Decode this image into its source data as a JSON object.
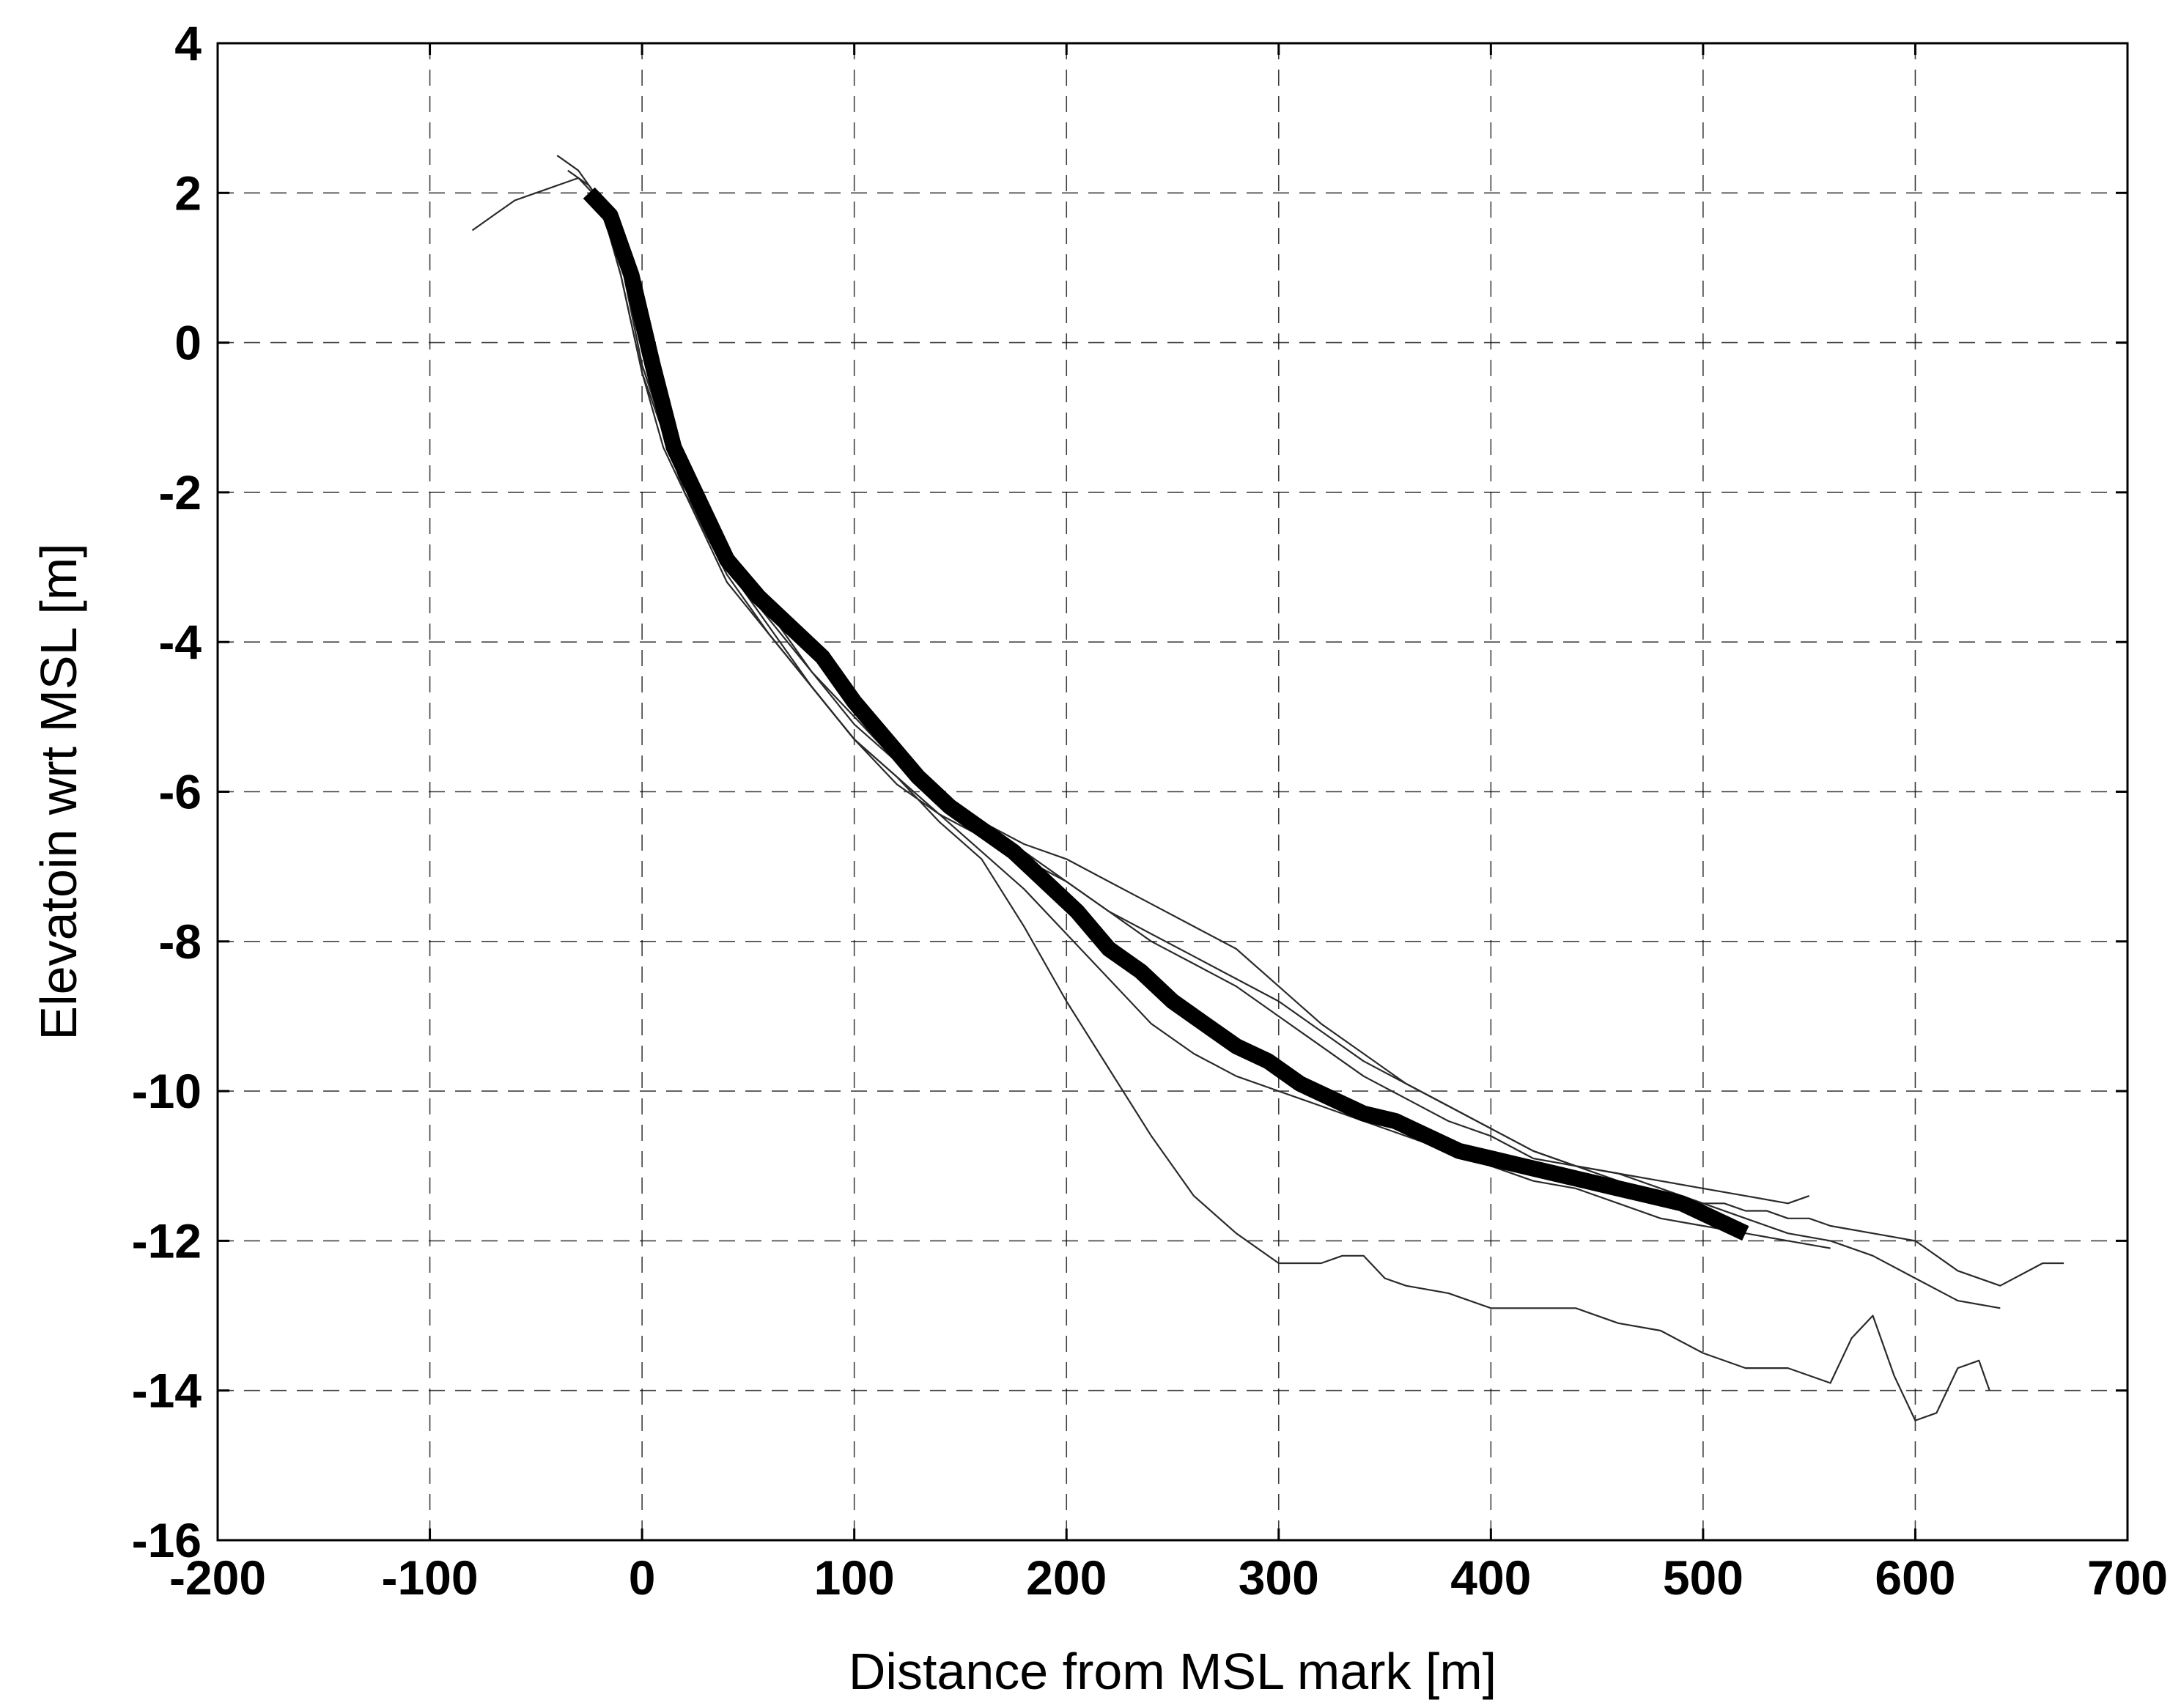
{
  "chart_data": {
    "type": "line",
    "title": "",
    "xlabel": "Distance from MSL mark [m]",
    "ylabel": "Elevatoin wrt MSL [m]",
    "xlim": [
      -200,
      700
    ],
    "ylim": [
      -16,
      4
    ],
    "xticks": [
      -200,
      -100,
      0,
      100,
      200,
      300,
      400,
      500,
      600,
      700
    ],
    "yticks": [
      -16,
      -14,
      -12,
      -10,
      -8,
      -6,
      -4,
      -2,
      0,
      2,
      4
    ],
    "grid": true,
    "colors": {
      "thin": "#2a2a2a",
      "thick": "#000000",
      "grid": "#000000"
    },
    "series": [
      {
        "style": "thin",
        "x": [
          -80,
          -70,
          -60,
          -50,
          -40,
          -30,
          -20,
          -10,
          0,
          10,
          20,
          30,
          40,
          60,
          80,
          100,
          120,
          140,
          160,
          180,
          200,
          220,
          240,
          260,
          280,
          300,
          320,
          340,
          360,
          380,
          400,
          420,
          440,
          460,
          480,
          500,
          510,
          520,
          530,
          540,
          550,
          560,
          580,
          600,
          620,
          640,
          660,
          670
        ],
        "y": [
          1.5,
          1.7,
          1.9,
          2.0,
          2.1,
          2.2,
          1.9,
          0.9,
          -0.4,
          -1.4,
          -2.0,
          -2.6,
          -3.2,
          -3.9,
          -4.6,
          -5.3,
          -5.9,
          -6.3,
          -6.6,
          -6.9,
          -7.2,
          -7.6,
          -7.9,
          -8.2,
          -8.5,
          -8.8,
          -9.2,
          -9.6,
          -9.9,
          -10.2,
          -10.5,
          -10.8,
          -11.0,
          -11.1,
          -11.3,
          -11.5,
          -11.5,
          -11.6,
          -11.6,
          -11.7,
          -11.7,
          -11.8,
          -11.9,
          -12.0,
          -12.4,
          -12.6,
          -12.3,
          -12.3
        ]
      },
      {
        "style": "thin",
        "x": [
          -40,
          -30,
          -20,
          -10,
          0,
          20,
          40,
          60,
          80,
          100,
          120,
          140,
          160,
          180,
          200,
          220,
          240,
          260,
          280,
          300,
          320,
          340,
          360,
          380,
          400,
          420,
          440,
          460,
          480,
          500,
          520,
          540,
          560,
          580,
          600,
          620,
          640
        ],
        "y": [
          2.5,
          2.3,
          1.9,
          0.9,
          -0.4,
          -2.0,
          -3.0,
          -3.7,
          -4.4,
          -5.1,
          -5.6,
          -6.1,
          -6.4,
          -6.7,
          -6.9,
          -7.2,
          -7.5,
          -7.8,
          -8.1,
          -8.6,
          -9.1,
          -9.5,
          -9.9,
          -10.2,
          -10.5,
          -10.8,
          -11.0,
          -11.2,
          -11.4,
          -11.5,
          -11.7,
          -11.9,
          -12.0,
          -12.2,
          -12.5,
          -12.8,
          -12.9
        ]
      },
      {
        "style": "thin",
        "x": [
          -35,
          -25,
          -15,
          -5,
          5,
          20,
          40,
          60,
          80,
          100,
          120,
          140,
          160,
          180,
          200,
          220,
          240,
          260,
          280,
          300,
          320,
          340,
          360,
          380,
          400,
          420,
          440,
          460,
          480,
          500,
          520,
          540,
          550
        ],
        "y": [
          2.3,
          2.1,
          1.7,
          0.6,
          -0.7,
          -2.0,
          -3.0,
          -3.6,
          -4.4,
          -5.0,
          -5.6,
          -6.0,
          -6.4,
          -6.8,
          -7.2,
          -7.6,
          -8.0,
          -8.3,
          -8.6,
          -9.0,
          -9.4,
          -9.8,
          -10.1,
          -10.4,
          -10.6,
          -10.9,
          -11.0,
          -11.1,
          -11.2,
          -11.3,
          -11.4,
          -11.5,
          -11.4
        ]
      },
      {
        "style": "thin",
        "x": [
          -20,
          -10,
          0,
          20,
          40,
          60,
          80,
          100,
          120,
          140,
          160,
          180,
          200,
          220,
          240,
          260,
          280,
          300,
          320,
          340,
          360,
          380,
          400,
          420,
          440,
          460,
          480,
          500,
          520,
          540,
          560
        ],
        "y": [
          2.0,
          1.1,
          -0.3,
          -1.9,
          -3.0,
          -3.8,
          -4.6,
          -5.3,
          -5.8,
          -6.3,
          -6.8,
          -7.3,
          -7.9,
          -8.5,
          -9.1,
          -9.5,
          -9.8,
          -10.0,
          -10.2,
          -10.4,
          -10.6,
          -10.8,
          -11.0,
          -11.2,
          -11.3,
          -11.5,
          -11.7,
          -11.8,
          -11.9,
          -12.0,
          -12.1
        ]
      },
      {
        "style": "thin",
        "x": [
          -20,
          -10,
          0,
          20,
          40,
          60,
          80,
          100,
          120,
          140,
          160,
          180,
          200,
          220,
          240,
          260,
          280,
          300,
          320,
          330,
          340,
          350,
          360,
          380,
          400,
          420,
          440,
          460,
          480,
          500,
          520,
          540,
          560,
          570,
          580,
          590,
          600,
          610,
          620,
          630,
          635
        ],
        "y": [
          2.0,
          1.1,
          -0.3,
          -2.0,
          -3.1,
          -3.9,
          -4.6,
          -5.3,
          -5.8,
          -6.4,
          -6.9,
          -7.8,
          -8.8,
          -9.7,
          -10.6,
          -11.4,
          -11.9,
          -12.3,
          -12.3,
          -12.2,
          -12.2,
          -12.5,
          -12.6,
          -12.7,
          -12.9,
          -12.9,
          -12.9,
          -13.1,
          -13.2,
          -13.5,
          -13.7,
          -13.7,
          -13.9,
          -13.3,
          -13.0,
          -13.8,
          -14.4,
          -14.3,
          -13.7,
          -13.6,
          -14.0
        ]
      },
      {
        "style": "thick",
        "x": [
          -25,
          -15,
          -5,
          5,
          15,
          25,
          40,
          55,
          70,
          85,
          100,
          115,
          130,
          145,
          160,
          175,
          190,
          205,
          220,
          235,
          250,
          265,
          280,
          295,
          310,
          325,
          340,
          355,
          370,
          385,
          400,
          415,
          430,
          445,
          460,
          475,
          490,
          505,
          520
        ],
        "y": [
          2.0,
          1.7,
          0.9,
          -0.3,
          -1.4,
          -2.0,
          -2.9,
          -3.4,
          -3.8,
          -4.2,
          -4.8,
          -5.3,
          -5.8,
          -6.2,
          -6.5,
          -6.8,
          -7.2,
          -7.6,
          -8.1,
          -8.4,
          -8.8,
          -9.1,
          -9.4,
          -9.6,
          -9.9,
          -10.1,
          -10.3,
          -10.4,
          -10.6,
          -10.8,
          -10.9,
          -11.0,
          -11.1,
          -11.2,
          -11.3,
          -11.4,
          -11.5,
          -11.7,
          -11.9
        ]
      }
    ]
  }
}
